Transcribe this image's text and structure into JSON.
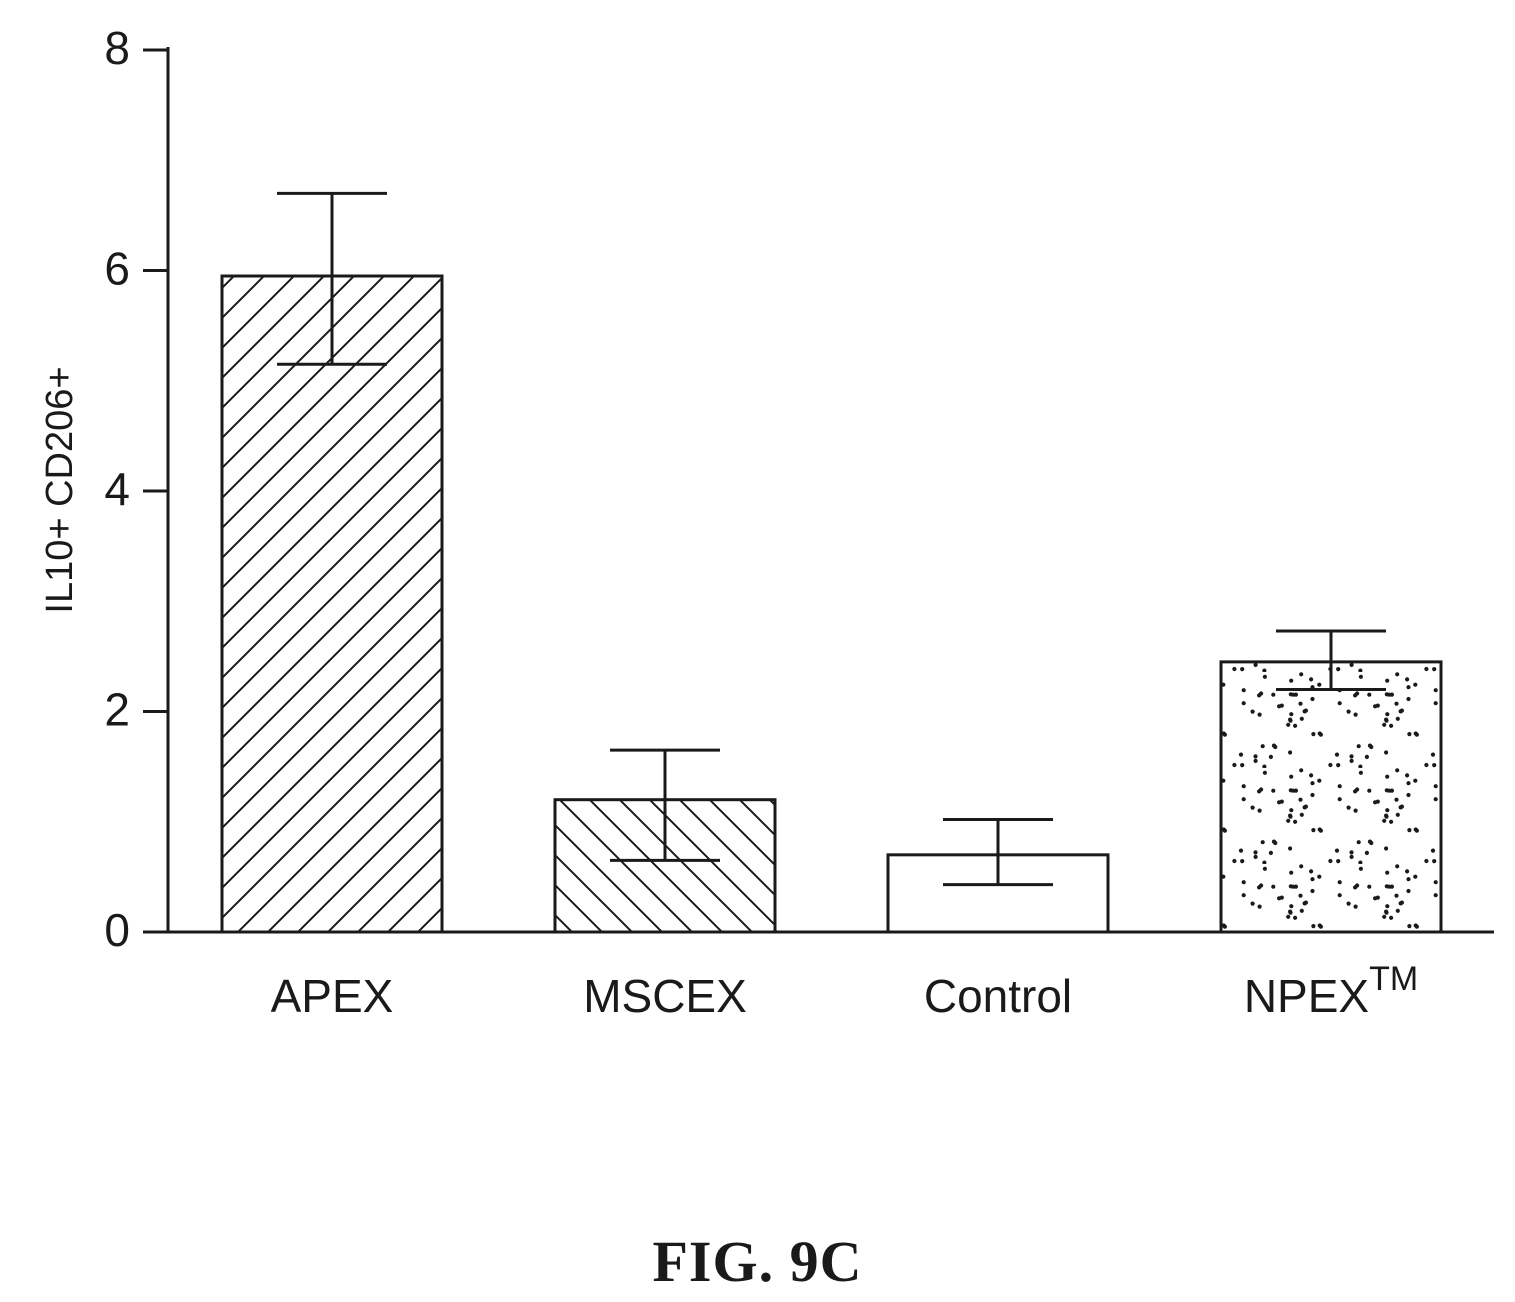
{
  "figure": {
    "caption": "FIG. 9C"
  },
  "chart_data": {
    "type": "bar",
    "title": "",
    "xlabel": "",
    "ylabel": "IL10+ CD206+",
    "ylim": [
      0,
      8
    ],
    "yticks": [
      "0",
      "2",
      "4",
      "6",
      "8"
    ],
    "grid": false,
    "legend": "none",
    "categories": [
      "APEX",
      "MSCEX",
      "Control",
      "NPEX"
    ],
    "category_superscripts": [
      "",
      "",
      "",
      "TM"
    ],
    "values": [
      5.95,
      1.2,
      0.7,
      2.45
    ],
    "error_high": [
      6.7,
      1.65,
      1.02,
      2.73
    ],
    "error_low": [
      5.15,
      0.65,
      0.43,
      2.2
    ],
    "fills": [
      "hatch-forward",
      "hatch-back",
      "none",
      "dots"
    ],
    "colors": {
      "stroke": "#1a1a1a",
      "background": "#ffffff"
    }
  }
}
